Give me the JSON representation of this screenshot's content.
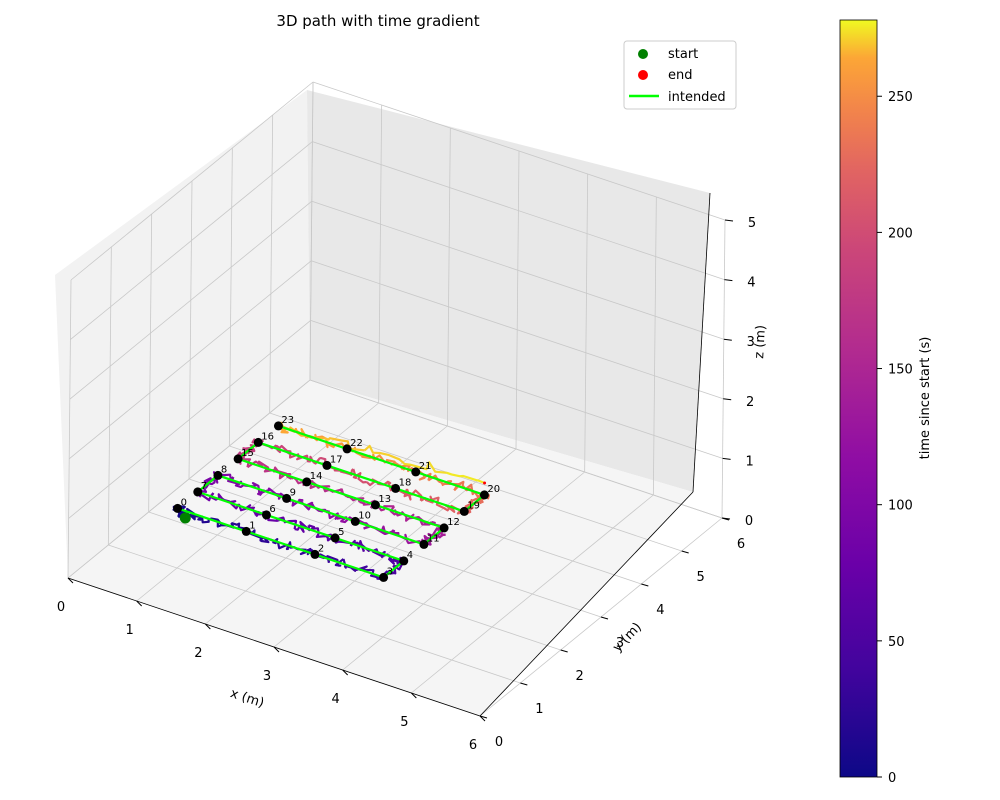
{
  "chart_data": {
    "type": "line3d",
    "title": "3D path with time gradient",
    "xlabel": "x (m)",
    "ylabel": "y (m)",
    "zlabel": "z (m)",
    "xlim": [
      0,
      6
    ],
    "ylim": [
      0,
      6
    ],
    "zlim": [
      0,
      5
    ],
    "x_ticks": [
      "0",
      "1",
      "2",
      "3",
      "4",
      "5",
      "6"
    ],
    "y_ticks": [
      "0",
      "1",
      "2",
      "3",
      "4",
      "5",
      "6"
    ],
    "z_ticks": [
      "0",
      "1",
      "2",
      "3",
      "4",
      "5"
    ],
    "grid": true,
    "legend": {
      "position": "top-right",
      "entries": [
        {
          "label": "start",
          "color": "#008000",
          "marker": "dot"
        },
        {
          "label": "end",
          "color": "#ff0000",
          "marker": "dot"
        },
        {
          "label": "intended",
          "color": "#00ff00",
          "marker": "line"
        }
      ]
    },
    "colorbar": {
      "label": "time since start (s)",
      "colormap": "plasma",
      "range": [
        0,
        278
      ],
      "ticks": [
        "0",
        "50",
        "100",
        "150",
        "200",
        "250"
      ]
    },
    "intended_color": "#00ff00",
    "waypoints": [
      {
        "id": "0",
        "x": 1.0,
        "y": 1.0,
        "z": 1.0
      },
      {
        "id": "1",
        "x": 2.0,
        "y": 1.0,
        "z": 1.0
      },
      {
        "id": "2",
        "x": 3.0,
        "y": 1.0,
        "z": 1.0
      },
      {
        "id": "3",
        "x": 4.0,
        "y": 1.0,
        "z": 1.0
      },
      {
        "id": "4",
        "x": 4.0,
        "y": 1.5,
        "z": 1.0
      },
      {
        "id": "5",
        "x": 3.0,
        "y": 1.5,
        "z": 1.0
      },
      {
        "id": "6",
        "x": 2.0,
        "y": 1.5,
        "z": 1.0
      },
      {
        "id": "7",
        "x": 1.0,
        "y": 1.5,
        "z": 1.0
      },
      {
        "id": "8",
        "x": 1.0,
        "y": 2.0,
        "z": 1.0
      },
      {
        "id": "9",
        "x": 2.0,
        "y": 2.0,
        "z": 1.0
      },
      {
        "id": "10",
        "x": 3.0,
        "y": 2.0,
        "z": 1.0
      },
      {
        "id": "11",
        "x": 4.0,
        "y": 2.0,
        "z": 1.0
      },
      {
        "id": "12",
        "x": 4.0,
        "y": 2.5,
        "z": 1.0
      },
      {
        "id": "13",
        "x": 3.0,
        "y": 2.5,
        "z": 1.0
      },
      {
        "id": "14",
        "x": 2.0,
        "y": 2.5,
        "z": 1.0
      },
      {
        "id": "15",
        "x": 1.0,
        "y": 2.5,
        "z": 1.0
      },
      {
        "id": "16",
        "x": 1.0,
        "y": 3.0,
        "z": 1.0
      },
      {
        "id": "17",
        "x": 2.0,
        "y": 3.0,
        "z": 1.0
      },
      {
        "id": "18",
        "x": 3.0,
        "y": 3.0,
        "z": 1.0
      },
      {
        "id": "19",
        "x": 4.0,
        "y": 3.0,
        "z": 1.0
      },
      {
        "id": "20",
        "x": 4.0,
        "y": 3.5,
        "z": 1.0
      },
      {
        "id": "21",
        "x": 3.0,
        "y": 3.5,
        "z": 1.0
      },
      {
        "id": "22",
        "x": 2.0,
        "y": 3.5,
        "z": 1.0
      },
      {
        "id": "23",
        "x": 1.0,
        "y": 3.5,
        "z": 1.0
      }
    ],
    "start": {
      "x": 1.2,
      "y": 0.85,
      "z": 1.0
    },
    "end": {
      "x": 4.0,
      "y": 3.5,
      "z": 1.2
    }
  }
}
